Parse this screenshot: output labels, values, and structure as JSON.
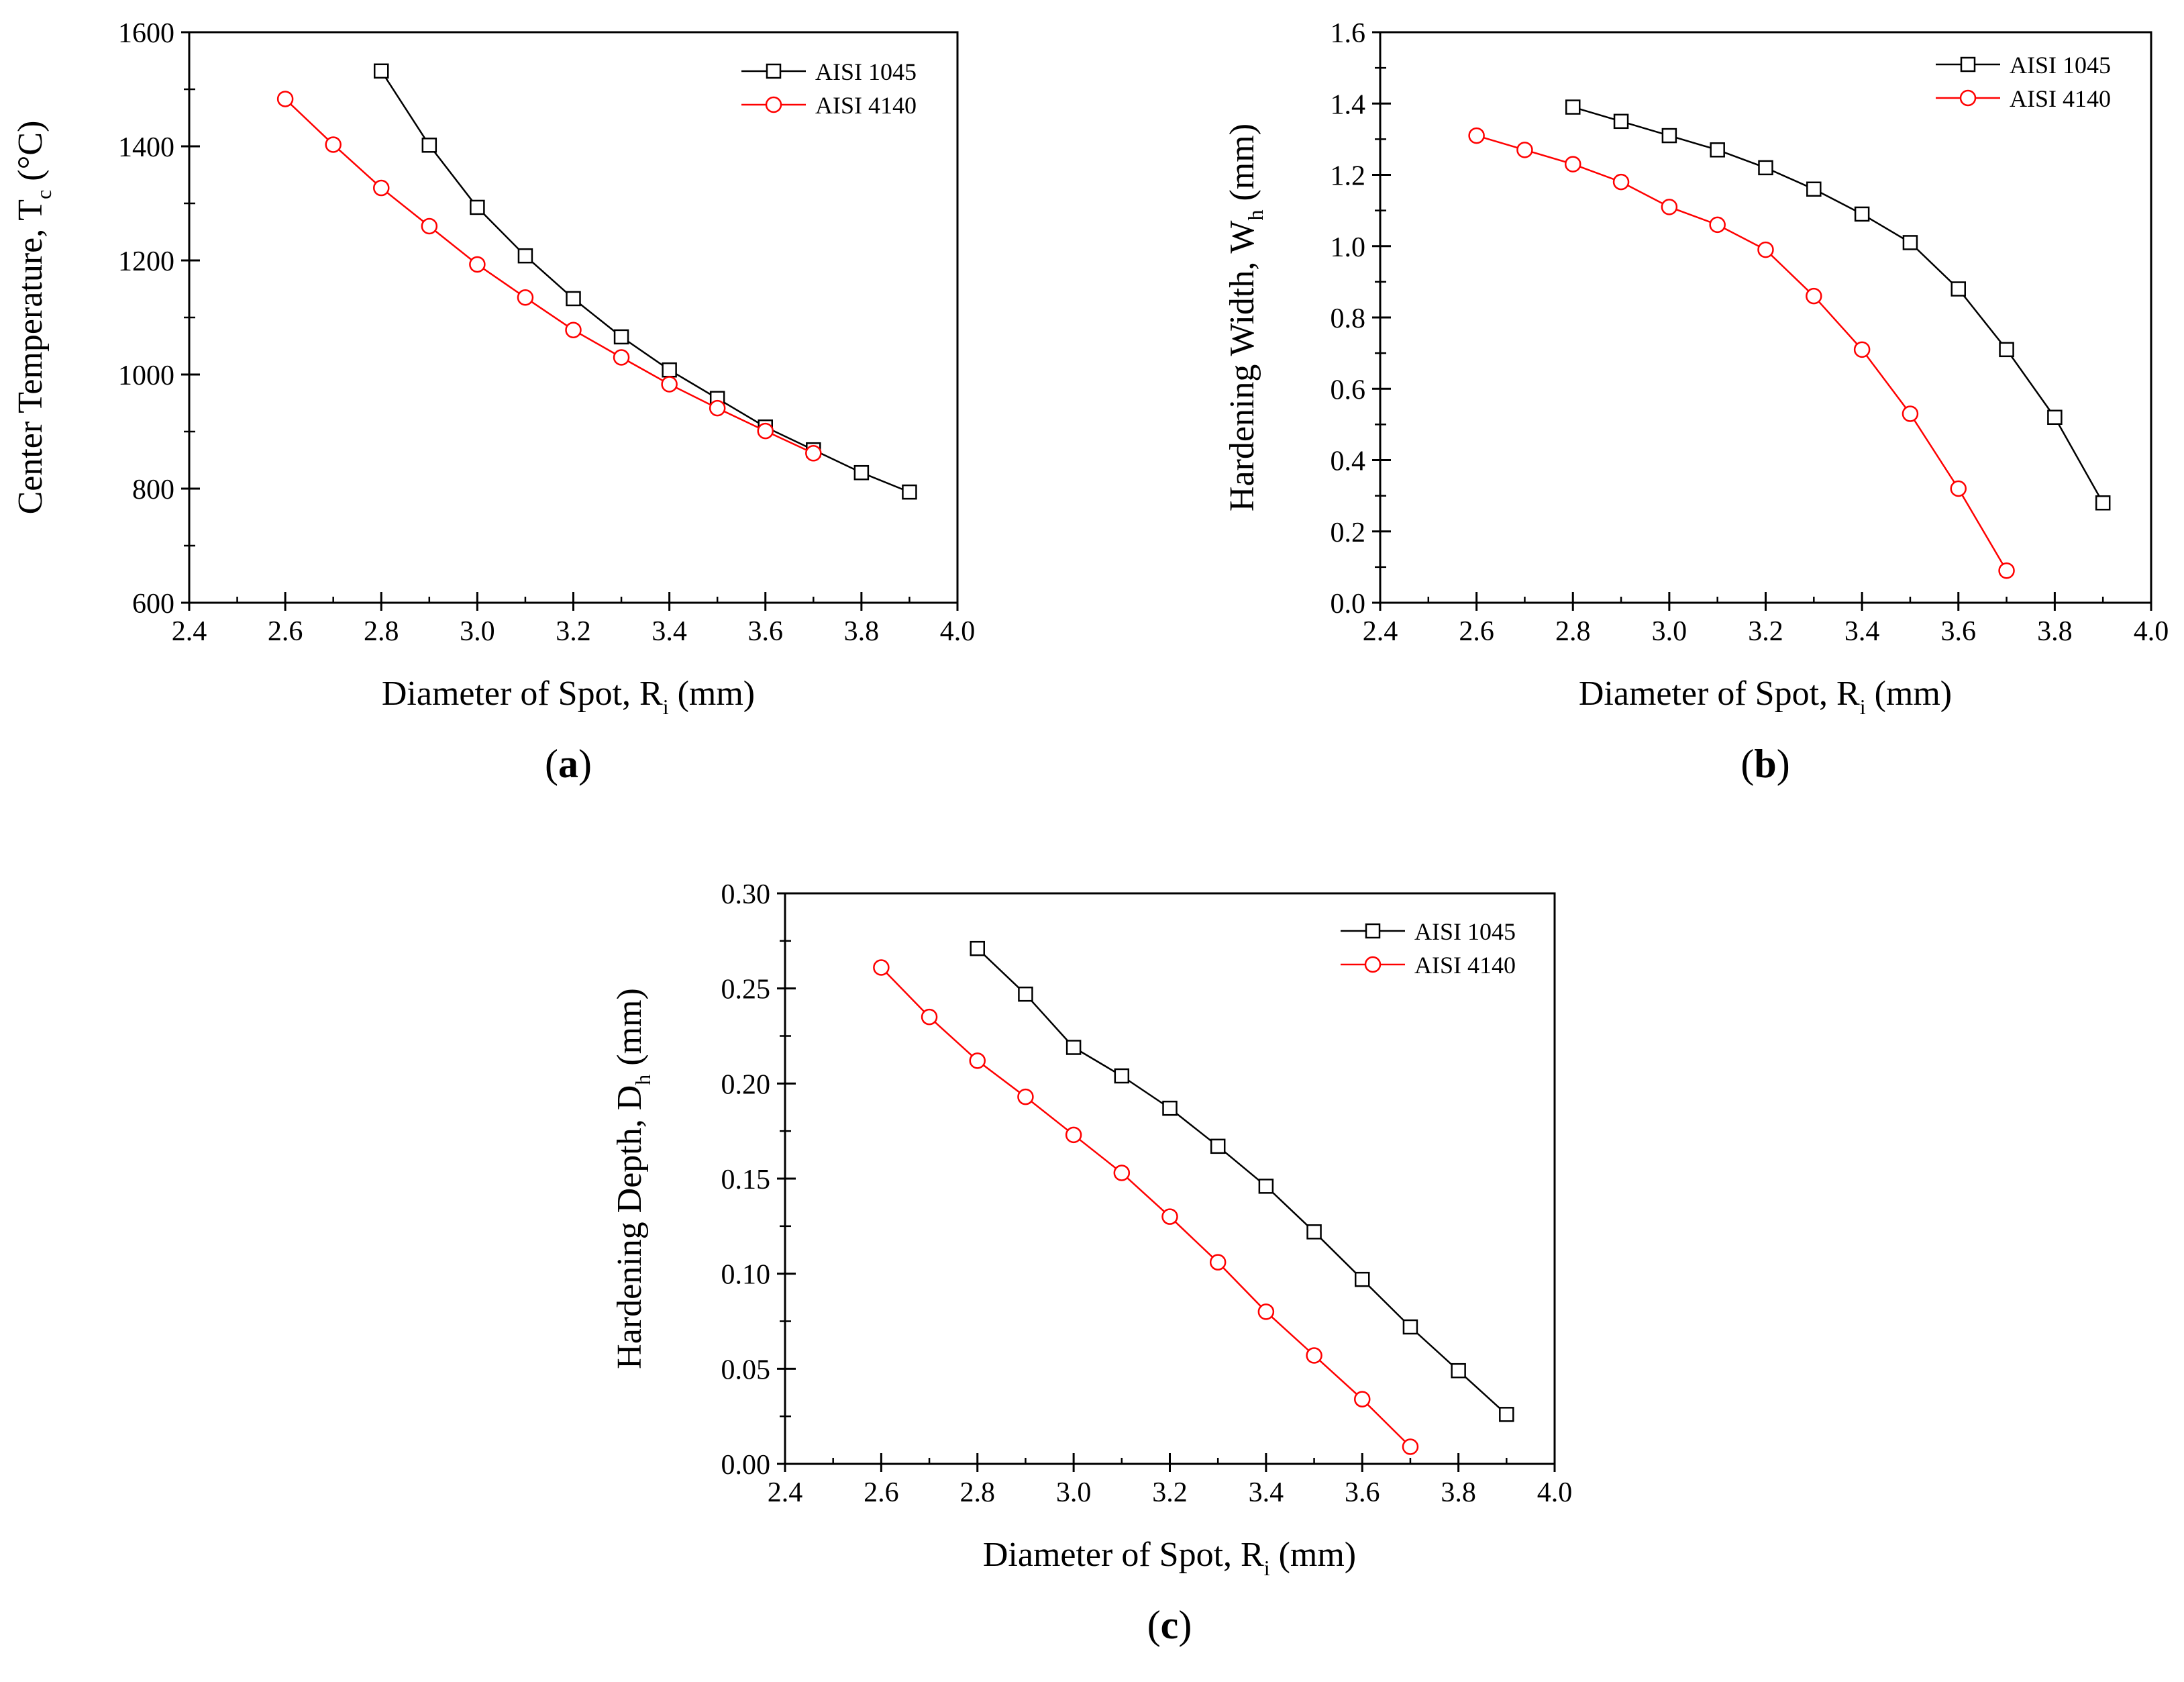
{
  "figure": {
    "panels": [
      {
        "open": "(",
        "letter": "a",
        "close": ")"
      },
      {
        "open": "(",
        "letter": "b",
        "close": ")"
      },
      {
        "open": "(",
        "letter": "c",
        "close": ")"
      }
    ]
  },
  "chart_data": [
    {
      "type": "line",
      "panel": "(a)",
      "title": "",
      "xlabel": {
        "main": "Diameter of Spot, R",
        "sub": "i",
        "tail": " (mm)"
      },
      "ylabel": {
        "main": "Center Temperature, T",
        "sub": "c",
        "tail": " (°C)"
      },
      "xlim": [
        2.4,
        4.0
      ],
      "ylim": [
        600,
        1600
      ],
      "xticks": [
        2.4,
        2.6,
        2.8,
        3.0,
        3.2,
        3.4,
        3.6,
        3.8,
        4.0
      ],
      "xtick_labels": [
        "2.4",
        "2.6",
        "2.8",
        "3.0",
        "3.2",
        "3.4",
        "3.6",
        "3.8",
        "4.0"
      ],
      "yticks": [
        600,
        800,
        1000,
        1200,
        1400,
        1600
      ],
      "ytick_labels": [
        "600",
        "800",
        "1000",
        "1200",
        "1400",
        "1600"
      ],
      "legend_position": "top-right",
      "series": [
        {
          "name": "AISI 1045",
          "marker": "square",
          "color": "#000000",
          "x": [
            2.8,
            2.9,
            3.0,
            3.1,
            3.2,
            3.3,
            3.4,
            3.5,
            3.6,
            3.7,
            3.8,
            3.9
          ],
          "y": [
            1532,
            1402,
            1293,
            1208,
            1133,
            1066,
            1008,
            958,
            908,
            868,
            828,
            794
          ]
        },
        {
          "name": "AISI 4140",
          "marker": "circle",
          "color": "#ff0000",
          "x": [
            2.6,
            2.7,
            2.8,
            2.9,
            3.0,
            3.1,
            3.2,
            3.3,
            3.4,
            3.5,
            3.6,
            3.7
          ],
          "y": [
            1483,
            1403,
            1327,
            1260,
            1193,
            1135,
            1078,
            1030,
            983,
            941,
            901,
            862
          ]
        }
      ]
    },
    {
      "type": "line",
      "panel": "(b)",
      "title": "",
      "xlabel": {
        "main": "Diameter of Spot, R",
        "sub": "i",
        "tail": " (mm)"
      },
      "ylabel": {
        "main": "Hardening Width, W",
        "sub": "h",
        "tail": " (mm)"
      },
      "xlim": [
        2.4,
        4.0
      ],
      "ylim": [
        0.0,
        1.6
      ],
      "xticks": [
        2.4,
        2.6,
        2.8,
        3.0,
        3.2,
        3.4,
        3.6,
        3.8,
        4.0
      ],
      "xtick_labels": [
        "2.4",
        "2.6",
        "2.8",
        "3.0",
        "3.2",
        "3.4",
        "3.6",
        "3.8",
        "4.0"
      ],
      "yticks": [
        0.0,
        0.2,
        0.4,
        0.6,
        0.8,
        1.0,
        1.2,
        1.4,
        1.6
      ],
      "ytick_labels": [
        "0.0",
        "0.2",
        "0.4",
        "0.6",
        "0.8",
        "1.0",
        "1.2",
        "1.4",
        "1.6"
      ],
      "legend_position": "top-right",
      "series": [
        {
          "name": "AISI 1045",
          "marker": "square",
          "color": "#000000",
          "x": [
            2.8,
            2.9,
            3.0,
            3.1,
            3.2,
            3.3,
            3.4,
            3.5,
            3.6,
            3.7,
            3.8,
            3.9
          ],
          "y": [
            1.39,
            1.35,
            1.31,
            1.27,
            1.22,
            1.16,
            1.09,
            1.01,
            0.88,
            0.71,
            0.52,
            0.28
          ]
        },
        {
          "name": "AISI 4140",
          "marker": "circle",
          "color": "#ff0000",
          "x": [
            2.6,
            2.7,
            2.8,
            2.9,
            3.0,
            3.1,
            3.2,
            3.3,
            3.4,
            3.5,
            3.6,
            3.7
          ],
          "y": [
            1.31,
            1.27,
            1.23,
            1.18,
            1.11,
            1.06,
            0.99,
            0.86,
            0.71,
            0.53,
            0.32,
            0.09
          ]
        }
      ]
    },
    {
      "type": "line",
      "panel": "(c)",
      "title": "",
      "xlabel": {
        "main": "Diameter of Spot, R",
        "sub": "i",
        "tail": " (mm)"
      },
      "ylabel": {
        "main": "Hardening Depth, D",
        "sub": "h",
        "tail": " (mm)"
      },
      "xlim": [
        2.4,
        4.0
      ],
      "ylim": [
        0.0,
        0.3
      ],
      "xticks": [
        2.4,
        2.6,
        2.8,
        3.0,
        3.2,
        3.4,
        3.6,
        3.8,
        4.0
      ],
      "xtick_labels": [
        "2.4",
        "2.6",
        "2.8",
        "3.0",
        "3.2",
        "3.4",
        "3.6",
        "3.8",
        "4.0"
      ],
      "yticks": [
        0.0,
        0.05,
        0.1,
        0.15,
        0.2,
        0.25,
        0.3
      ],
      "ytick_labels": [
        "0.00",
        "0.05",
        "0.10",
        "0.15",
        "0.20",
        "0.25",
        "0.30"
      ],
      "legend_position": "top-right",
      "series": [
        {
          "name": "AISI 1045",
          "marker": "square",
          "color": "#000000",
          "x": [
            2.8,
            2.9,
            3.0,
            3.1,
            3.2,
            3.3,
            3.4,
            3.5,
            3.6,
            3.7,
            3.8,
            3.9
          ],
          "y": [
            0.271,
            0.247,
            0.219,
            0.204,
            0.187,
            0.167,
            0.146,
            0.122,
            0.097,
            0.072,
            0.049,
            0.026
          ]
        },
        {
          "name": "AISI 4140",
          "marker": "circle",
          "color": "#ff0000",
          "x": [
            2.6,
            2.7,
            2.8,
            2.9,
            3.0,
            3.1,
            3.2,
            3.3,
            3.4,
            3.5,
            3.6,
            3.7
          ],
          "y": [
            0.261,
            0.235,
            0.212,
            0.193,
            0.173,
            0.153,
            0.13,
            0.106,
            0.08,
            0.057,
            0.034,
            0.009
          ]
        }
      ]
    }
  ]
}
